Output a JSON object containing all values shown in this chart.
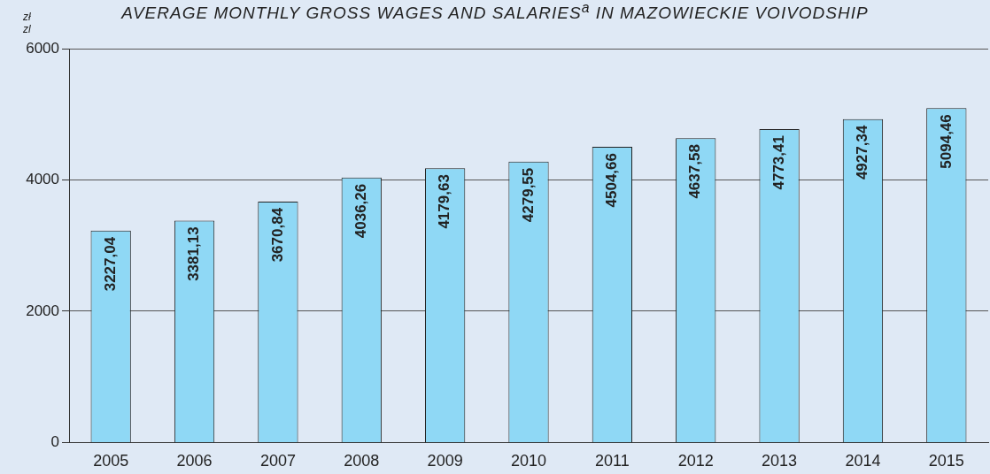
{
  "chart_data": {
    "type": "bar",
    "title": "AVERAGE MONTHLY GROSS WAGES AND SALARIES$^{a}$ IN MAZOWIECKIE VOIVODSHIP",
    "ylabel": "zł\nzl",
    "categories": [
      "2005",
      "2006",
      "2007",
      "2008",
      "2009",
      "2010",
      "2011",
      "2012",
      "2013",
      "2014",
      "2015"
    ],
    "series": [
      {
        "color": "#8fd8f5",
        "values": [
          3227.04,
          3381.13,
          3670.84,
          4036.26,
          4179.63,
          4279.55,
          4504.66,
          4637.58,
          4773.41,
          4927.34,
          5094.46
        ],
        "value_labels": [
          "3227,04",
          "3381,13",
          "3670,84",
          "4036,26",
          "4179,63",
          "4279,55",
          "4504,66",
          "4637,58",
          "4773,41",
          "4927,34",
          "5094,46"
        ]
      }
    ],
    "ylim": [
      0,
      6000
    ],
    "yticks": [
      0,
      2000,
      4000,
      6000
    ],
    "grid": "y",
    "legend": false
  }
}
